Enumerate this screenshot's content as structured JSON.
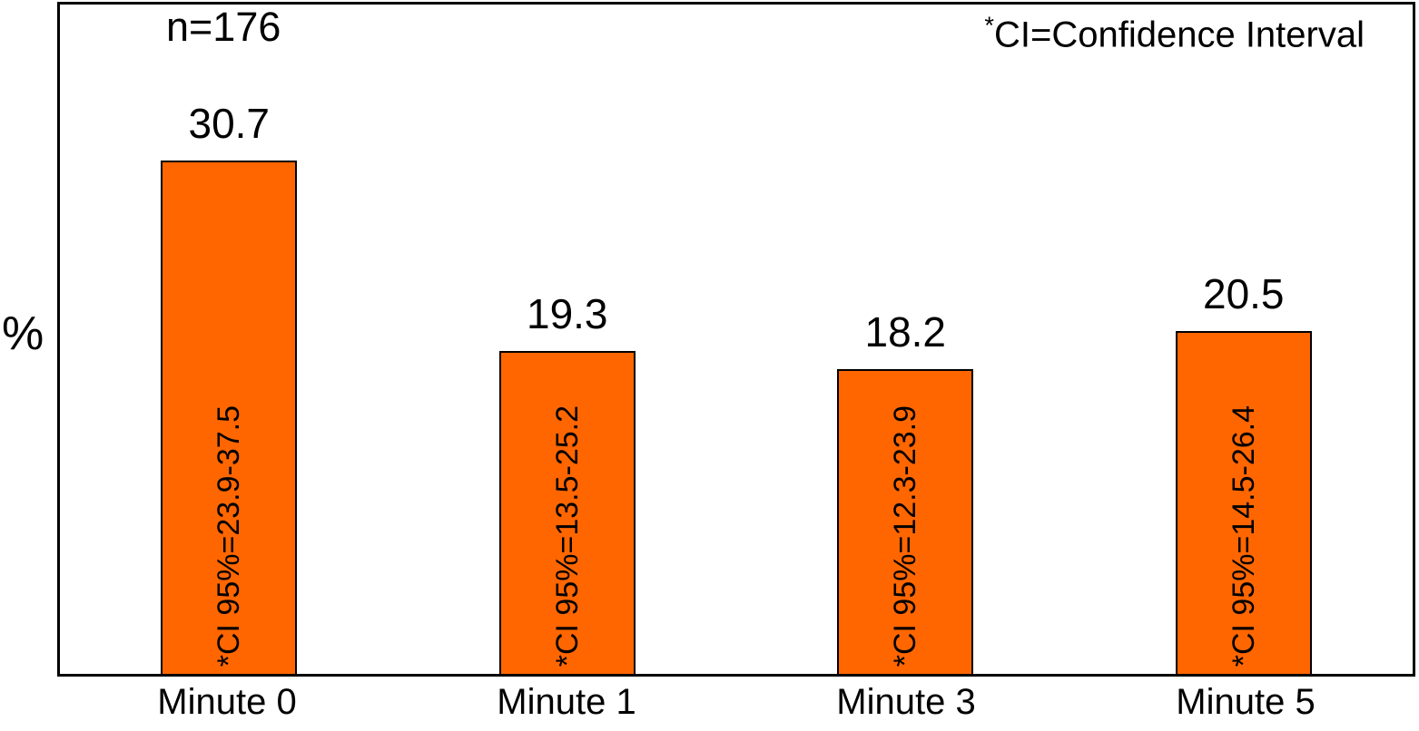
{
  "chart_data": {
    "type": "bar",
    "categories": [
      "Minute 0",
      "Minute 1",
      "Minute 3",
      "Minute 5"
    ],
    "values": [
      30.7,
      19.3,
      18.2,
      20.5
    ],
    "bar_inner_labels": [
      "*CI  95%=23.9-37.5",
      "*CI 95%=13.5-25.2",
      "*CI 95%=12.3-23.9",
      "*CI 95%=14.5-26.4"
    ],
    "title": "",
    "xlabel": "",
    "ylabel": "%",
    "ylim": [
      0,
      40
    ],
    "grid": false,
    "legend": "none",
    "bar_color": "#FF6600",
    "bar_border_color": "#000000",
    "annotations": {
      "sample_size": "n=176",
      "ci_note_asterisk": "*",
      "ci_note_text": "CI=Confidence Interval"
    }
  }
}
